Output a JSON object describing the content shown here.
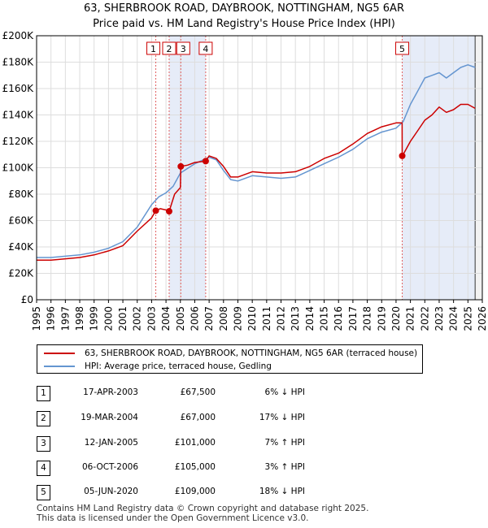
{
  "title_line1": "63, SHERBROOK ROAD, DAYBROOK, NOTTINGHAM, NG5 6AR",
  "title_line2": "Price paid vs. HM Land Registry's House Price Index (HPI)",
  "colors": {
    "property": "#cc0000",
    "hpi": "#6495d0",
    "shade": "#e6ecf8",
    "grid": "#dddddd"
  },
  "chart_data": {
    "type": "line",
    "xlim": [
      1995,
      2026
    ],
    "ylim": [
      0,
      200000
    ],
    "y_ticks": [
      {
        "value": 0,
        "label": "£0"
      },
      {
        "value": 20000,
        "label": "£20K"
      },
      {
        "value": 40000,
        "label": "£40K"
      },
      {
        "value": 60000,
        "label": "£60K"
      },
      {
        "value": 80000,
        "label": "£80K"
      },
      {
        "value": 100000,
        "label": "£100K"
      },
      {
        "value": 120000,
        "label": "£120K"
      },
      {
        "value": 140000,
        "label": "£140K"
      },
      {
        "value": 160000,
        "label": "£160K"
      },
      {
        "value": 180000,
        "label": "£180K"
      },
      {
        "value": 200000,
        "label": "£200K"
      }
    ],
    "x_ticks": [
      "1995",
      "1996",
      "1997",
      "1998",
      "1999",
      "2000",
      "2001",
      "2002",
      "2003",
      "2004",
      "2005",
      "2006",
      "2007",
      "2008",
      "2009",
      "2010",
      "2011",
      "2012",
      "2013",
      "2014",
      "2015",
      "2016",
      "2017",
      "2018",
      "2019",
      "2020",
      "2021",
      "2022",
      "2023",
      "2024",
      "2025",
      "2026"
    ],
    "shaded_ranges": [
      [
        2004.22,
        2006.76
      ],
      [
        2020.43,
        2025.5
      ]
    ],
    "series": [
      {
        "name": "HPI: Average price, terraced house, Gedling",
        "color": "#6495d0",
        "x": [
          1995,
          1996,
          1997,
          1998,
          1999,
          2000,
          2001,
          2002,
          2003,
          2003.5,
          2004,
          2004.5,
          2005,
          2006,
          2007,
          2007.5,
          2008,
          2008.5,
          2009,
          2010,
          2011,
          2012,
          2013,
          2014,
          2015,
          2016,
          2017,
          2018,
          2019,
          2020,
          2020.5,
          2021,
          2021.5,
          2022,
          2022.5,
          2023,
          2023.5,
          2024,
          2024.5,
          2025,
          2025.5
        ],
        "y": [
          32000,
          32000,
          33000,
          34000,
          36000,
          39000,
          44000,
          55000,
          72000,
          78000,
          81000,
          86000,
          96000,
          103000,
          108000,
          106000,
          98000,
          91000,
          90000,
          94000,
          93000,
          92000,
          93000,
          98000,
          103000,
          108000,
          114000,
          122000,
          127000,
          130000,
          135000,
          148000,
          158000,
          168000,
          170000,
          172000,
          168000,
          172000,
          176000,
          178000,
          176000
        ]
      },
      {
        "name": "63, SHERBROOK ROAD, DAYBROOK, NOTTINGHAM, NG5 6AR (terraced house)",
        "color": "#cc0000",
        "x": [
          1995,
          1996,
          1997,
          1998,
          1999,
          2000,
          2001,
          2002,
          2003,
          2003.29,
          2003.6,
          2004,
          2004.22,
          2004.6,
          2005,
          2005.03,
          2005.5,
          2006,
          2006.76,
          2007,
          2007.5,
          2008,
          2008.5,
          2009,
          2010,
          2011,
          2012,
          2013,
          2014,
          2015,
          2016,
          2017,
          2018,
          2019,
          2020,
          2020.42,
          2020.43,
          2020.6,
          2021,
          2021.5,
          2022,
          2022.5,
          2023,
          2023.5,
          2024,
          2024.5,
          2025,
          2025.5
        ],
        "y": [
          30000,
          30000,
          31000,
          32000,
          34000,
          37000,
          41000,
          52000,
          62000,
          67500,
          69000,
          68000,
          67000,
          80000,
          85000,
          101000,
          102000,
          104000,
          105000,
          109000,
          107000,
          101000,
          93000,
          93000,
          97000,
          96000,
          96000,
          97000,
          101000,
          107000,
          111000,
          118000,
          126000,
          131000,
          134000,
          134000,
          109000,
          112000,
          120000,
          128000,
          136000,
          140000,
          146000,
          142000,
          144000,
          148000,
          148000,
          145000
        ]
      }
    ],
    "transactions": [
      {
        "n": "1",
        "x": 2003.29,
        "price": 67500
      },
      {
        "n": "2",
        "x": 2004.22,
        "price": 67000
      },
      {
        "n": "3",
        "x": 2005.03,
        "price": 101000
      },
      {
        "n": "4",
        "x": 2006.76,
        "price": 105000
      },
      {
        "n": "5",
        "x": 2020.43,
        "price": 109000
      }
    ]
  },
  "legend": {
    "property_label": "63, SHERBROOK ROAD, DAYBROOK, NOTTINGHAM, NG5 6AR (terraced house)",
    "hpi_label": "HPI: Average price, terraced house, Gedling"
  },
  "transactions_table": [
    {
      "n": "1",
      "date": "17-APR-2003",
      "price": "£67,500",
      "hpi": "6% ↓ HPI"
    },
    {
      "n": "2",
      "date": "19-MAR-2004",
      "price": "£67,000",
      "hpi": "17% ↓ HPI"
    },
    {
      "n": "3",
      "date": "12-JAN-2005",
      "price": "£101,000",
      "hpi": "7% ↑ HPI"
    },
    {
      "n": "4",
      "date": "06-OCT-2006",
      "price": "£105,000",
      "hpi": "3% ↑ HPI"
    },
    {
      "n": "5",
      "date": "05-JUN-2020",
      "price": "£109,000",
      "hpi": "18% ↓ HPI"
    }
  ],
  "footer_line1": "Contains HM Land Registry data © Crown copyright and database right 2025.",
  "footer_line2": "This data is licensed under the Open Government Licence v3.0."
}
